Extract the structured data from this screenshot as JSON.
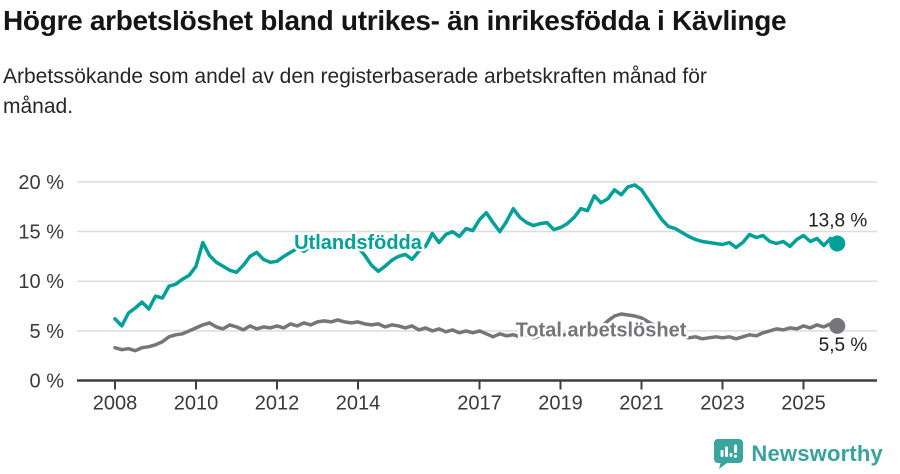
{
  "header": {
    "title": "Högre arbetslöshet bland utrikes- än inrikesfödda i Kävlinge",
    "subtitle": "Arbetssökande som andel av den registerbaserade arbetskraften månad för månad."
  },
  "footer": {
    "brand": "Newsworthy",
    "brand_color": "#38a39c",
    "logo_icon": "bar-chart-exclamation-bubble-icon"
  },
  "colors": {
    "series_foreign_born": "#00a099",
    "series_total": "#75767a",
    "gridline": "#dcdcdc",
    "axis": "#3f3f3f",
    "tick_text": "#3a3a3a",
    "value_label_text": "#1d1d1d"
  },
  "chart_data": {
    "type": "line",
    "title": "Högre arbetslöshet bland utrikes- än inrikesfödda i Kävlinge",
    "subtitle": "Arbetssökande som andel av den registerbaserade arbetskraften månad för månad.",
    "grid": true,
    "legend_position": "inline-labels",
    "x_axis": {
      "ticks": [
        {
          "label": "2008",
          "year": 2008
        },
        {
          "label": "2010",
          "year": 2010
        },
        {
          "label": "2012",
          "year": 2012
        },
        {
          "label": "2014",
          "year": 2014
        },
        {
          "label": "2017",
          "year": 2017
        },
        {
          "label": "2019",
          "year": 2019
        },
        {
          "label": "2021",
          "year": 2021
        },
        {
          "label": "2023",
          "year": 2023
        },
        {
          "label": "2025",
          "year": 2025
        }
      ]
    },
    "y_axis": {
      "unit": "%",
      "range": [
        0,
        21
      ],
      "ticks": [
        {
          "label": "0 %",
          "value": 0
        },
        {
          "label": "5 %",
          "value": 5
        },
        {
          "label": "10 %",
          "value": 10
        },
        {
          "label": "15 %",
          "value": 15
        },
        {
          "label": "20 %",
          "value": 20
        }
      ]
    },
    "sampling": {
      "start_year": 2008.0,
      "step_years": 0.1666667,
      "note": "values are percent of labour force"
    },
    "series": [
      {
        "name": "Utlandsfödda",
        "color": "#00a099",
        "end_label": "13,8 %",
        "end_value": 13.8,
        "end_label_position": "above",
        "label_at": {
          "year": 2014.0,
          "value": 13.85
        },
        "values": [
          6.2,
          5.5,
          6.8,
          7.3,
          7.9,
          7.2,
          8.5,
          8.3,
          9.5,
          9.7,
          10.2,
          10.6,
          11.5,
          13.9,
          12.6,
          11.9,
          11.5,
          11.1,
          10.9,
          11.6,
          12.5,
          12.9,
          12.2,
          11.9,
          12.0,
          12.5,
          12.9,
          13.3,
          13.0,
          13.5,
          13.8,
          14.4,
          14.1,
          13.9,
          14.1,
          13.8,
          13.4,
          12.6,
          11.6,
          11.0,
          11.5,
          12.1,
          12.5,
          12.7,
          12.2,
          13.0,
          13.5,
          14.8,
          13.9,
          14.7,
          15.0,
          14.5,
          15.3,
          15.1,
          16.2,
          16.9,
          15.9,
          15.0,
          16.0,
          17.3,
          16.4,
          15.9,
          15.6,
          15.8,
          15.9,
          15.2,
          15.4,
          15.8,
          16.4,
          17.3,
          17.1,
          18.6,
          17.9,
          18.3,
          19.2,
          18.7,
          19.5,
          19.7,
          19.2,
          18.2,
          17.2,
          16.2,
          15.5,
          15.3,
          14.9,
          14.5,
          14.2,
          14.0,
          13.9,
          13.8,
          13.7,
          13.9,
          13.4,
          13.9,
          14.7,
          14.4,
          14.6,
          14.0,
          13.8,
          14.0,
          13.5,
          14.2,
          14.6,
          14.0,
          14.3,
          13.6,
          14.3,
          13.8
        ]
      },
      {
        "name": "Total arbetslöshet",
        "color": "#75767a",
        "end_label": "5,5 %",
        "end_value": 5.5,
        "end_label_position": "below",
        "label_at": {
          "year": 2020.0,
          "value": 5.05
        },
        "values": [
          3.3,
          3.1,
          3.2,
          3.0,
          3.3,
          3.4,
          3.6,
          3.9,
          4.4,
          4.6,
          4.7,
          5.0,
          5.3,
          5.6,
          5.8,
          5.4,
          5.2,
          5.6,
          5.4,
          5.1,
          5.5,
          5.2,
          5.4,
          5.3,
          5.5,
          5.3,
          5.7,
          5.5,
          5.8,
          5.6,
          5.9,
          6.0,
          5.9,
          6.1,
          5.9,
          5.8,
          5.9,
          5.7,
          5.6,
          5.7,
          5.4,
          5.6,
          5.5,
          5.3,
          5.5,
          5.1,
          5.3,
          5.0,
          5.2,
          4.9,
          5.1,
          4.8,
          5.0,
          4.8,
          5.0,
          4.7,
          4.4,
          4.7,
          4.5,
          4.6,
          4.4,
          4.6,
          4.3,
          4.5,
          4.4,
          4.6,
          4.5,
          4.7,
          4.6,
          4.8,
          4.7,
          5.0,
          5.4,
          6.0,
          6.5,
          6.7,
          6.6,
          6.5,
          6.3,
          5.9,
          5.5,
          5.1,
          4.8,
          4.6,
          4.5,
          4.3,
          4.4,
          4.2,
          4.3,
          4.4,
          4.3,
          4.4,
          4.2,
          4.4,
          4.6,
          4.5,
          4.8,
          5.0,
          5.2,
          5.1,
          5.3,
          5.2,
          5.5,
          5.3,
          5.6,
          5.4,
          5.7,
          5.5
        ]
      }
    ]
  }
}
